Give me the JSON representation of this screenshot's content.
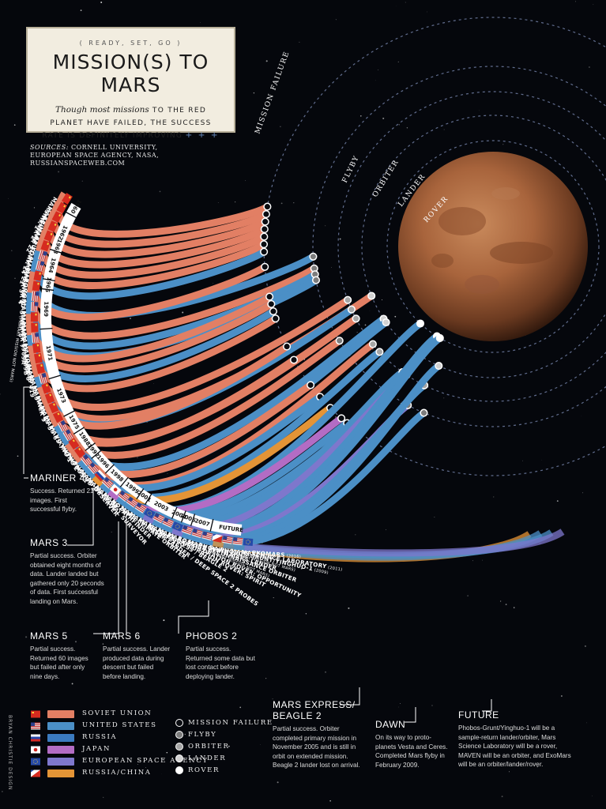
{
  "header": {
    "kicker": "READY, SET, GO",
    "title": "MISSION(S) TO MARS",
    "subtitle_italic": "Though most missions",
    "subtitle_rest": " TO THE RED PLANET HAVE FAILED, THE SUCCESS RATE IS DEFINITELY IMPROVING",
    "plus": "+ + +"
  },
  "sources": {
    "label": "SOURCES:",
    "text": " CORNELL UNIVERSITY, EUROPEAN SPACE AGENCY, NASA, RUSSIANSPACEWEB.COM"
  },
  "orbit_labels": [
    "MISSION FAILURE",
    "FLYBY",
    "ORBITER",
    "LANDER",
    "ROVER"
  ],
  "agency_colors": {
    "ussr": "#e27f64",
    "usa": "#4b8fc6",
    "russia": "#3b7bc0",
    "japan": "#b36cc4",
    "esa": "#7e77cc",
    "russia_china": "#e49436"
  },
  "outcome_colors": {
    "failure": "#0b0d12",
    "flyby": "#7d7d7d",
    "orbiter": "#a6a6a6",
    "lander": "#d2d2d2",
    "rover": "#ffffff"
  },
  "missions": [
    {
      "name": "MARSNIK 1",
      "agency": "ussr",
      "outcome": "failure",
      "flag": "ussr"
    },
    {
      "name": "MARSNIK 2",
      "agency": "ussr",
      "outcome": "failure",
      "flag": "ussr"
    },
    {
      "name": "SPUTNIK 22",
      "agency": "ussr",
      "outcome": "failure",
      "flag": "ussr"
    },
    {
      "name": "MARS 1",
      "agency": "ussr",
      "outcome": "failure",
      "flag": "ussr"
    },
    {
      "name": "SPUTNIK 24",
      "agency": "ussr",
      "outcome": "failure",
      "flag": "ussr"
    },
    {
      "name": "KOSMOS 21",
      "agency": "ussr",
      "outcome": "failure",
      "flag": "ussr"
    },
    {
      "name": "MARINER 3",
      "agency": "usa",
      "outcome": "failure",
      "flag": "usa"
    },
    {
      "name": "MARINER 4",
      "agency": "usa",
      "outcome": "flyby",
      "flag": "usa"
    },
    {
      "name": "ZOND 2",
      "agency": "ussr",
      "outcome": "failure",
      "flag": "ussr"
    },
    {
      "name": "ZOND 3",
      "agency": "ussr",
      "outcome": "flyby",
      "flag": "ussr",
      "note": " (PRIMARY MISSION NOT MARS)"
    },
    {
      "name": "MARINER 6",
      "agency": "usa",
      "outcome": "flyby",
      "flag": "usa"
    },
    {
      "name": "MARINER 7",
      "agency": "usa",
      "outcome": "flyby",
      "flag": "usa"
    },
    {
      "name": "MARS 1969A",
      "agency": "ussr",
      "outcome": "failure",
      "flag": "ussr"
    },
    {
      "name": "MARS 1969B",
      "agency": "ussr",
      "outcome": "failure",
      "flag": "ussr"
    },
    {
      "name": "MARINER 8",
      "agency": "usa",
      "outcome": "failure",
      "flag": "usa"
    },
    {
      "name": "KOSMOS 419",
      "agency": "ussr",
      "outcome": "failure",
      "flag": "ussr"
    },
    {
      "name": "MARS 2",
      "agency": "ussr",
      "outcome": "orbiter",
      "flag": "ussr"
    },
    {
      "name": "MARS 3",
      "agency": "ussr",
      "outcome": "lander",
      "flag": "ussr"
    },
    {
      "name": "MARINER 9",
      "agency": "usa",
      "outcome": "orbiter",
      "flag": "usa"
    },
    {
      "name": "MARS 4",
      "agency": "ussr",
      "outcome": "failure",
      "flag": "ussr"
    },
    {
      "name": "MARS 5",
      "agency": "ussr",
      "outcome": "orbiter",
      "flag": "ussr"
    },
    {
      "name": "MARS 6",
      "agency": "ussr",
      "outcome": "failure",
      "flag": "ussr"
    },
    {
      "name": "MARS 7",
      "agency": "ussr",
      "outcome": "flyby",
      "flag": "ussr"
    },
    {
      "name": "VIKING 1",
      "agency": "usa",
      "outcome": "lander",
      "flag": "usa"
    },
    {
      "name": "VIKING 2",
      "agency": "usa",
      "outcome": "lander",
      "flag": "usa"
    },
    {
      "name": "PHOBOS 1",
      "agency": "ussr",
      "outcome": "failure",
      "flag": "ussr"
    },
    {
      "name": "PHOBOS 2",
      "agency": "ussr",
      "outcome": "orbiter",
      "flag": "ussr"
    },
    {
      "name": "MARS OBSERVER",
      "agency": "usa",
      "outcome": "failure",
      "flag": "usa"
    },
    {
      "name": "MARS GLOBAL SURVEYOR",
      "agency": "usa",
      "outcome": "orbiter",
      "flag": "usa"
    },
    {
      "name": "MARS 96",
      "agency": "russia_china",
      "outcome": "failure",
      "flag": "russia"
    },
    {
      "name": "MARS PATHFINDER",
      "agency": "usa",
      "outcome": "rover",
      "flag": "usa"
    },
    {
      "name": "NOZOMI",
      "agency": "japan",
      "outcome": "failure",
      "flag": "japan"
    },
    {
      "name": "MARS CLIMATE ORBITER",
      "agency": "usa",
      "outcome": "failure",
      "flag": "usa"
    },
    {
      "name": "MARS POLAR LANDER / DEEP SPACE 2 PROBES",
      "agency": "usa",
      "outcome": "failure",
      "flag": "usa"
    },
    {
      "name": "MARS ODYSSEY",
      "agency": "usa",
      "outcome": "orbiter",
      "flag": "usa"
    },
    {
      "name": "MARS EXPRESS / BEAGLE 2",
      "agency": "esa",
      "outcome": "orbiter",
      "flag": "esa"
    },
    {
      "name": "MARS EXPLORATION ROVER: SPIRIT",
      "agency": "usa",
      "outcome": "rover",
      "flag": "usa"
    },
    {
      "name": "MARS EXPLORATION ROVER: OPPORTUNITY",
      "agency": "usa",
      "outcome": "rover",
      "flag": "usa"
    },
    {
      "name": "ROSETTA",
      "agency": "esa",
      "outcome": "flyby",
      "flag": "esa",
      "note": " (PRIMARY MISSION NOT MARS)"
    },
    {
      "name": "MARS RECONNAISSANCE ORBITER",
      "agency": "usa",
      "outcome": "orbiter",
      "flag": "usa"
    },
    {
      "name": "PHOENIX MARS LANDER",
      "agency": "usa",
      "outcome": "lander",
      "flag": "usa"
    },
    {
      "name": "DAWN",
      "agency": "usa",
      "outcome": "flyby",
      "flag": "usa",
      "note": " (PRIMARY MISSION NOT MARS)"
    },
    {
      "name": "PHOBOS-GRUNT/YINGHUO-1",
      "agency": "russia_china",
      "outcome": "future",
      "flag": "russia_china",
      "note": " (2009)"
    },
    {
      "name": "MARS SCIENCE LABORATORY",
      "agency": "usa",
      "outcome": "future",
      "flag": "usa",
      "note": " (2011)"
    },
    {
      "name": "MAVEN",
      "agency": "usa",
      "outcome": "future",
      "flag": "usa",
      "note": " (2013)"
    },
    {
      "name": "EXOMARS",
      "agency": "esa",
      "outcome": "future",
      "flag": "esa",
      "note": " (2016)"
    }
  ],
  "years": [
    {
      "label": "1960",
      "first": 0,
      "last": 1
    },
    {
      "label": "1962",
      "first": 2,
      "last": 5
    },
    {
      "label": "1963",
      "first": 5,
      "last": 5
    },
    {
      "label": "1964",
      "first": 6,
      "last": 8
    },
    {
      "label": "1965",
      "first": 9,
      "last": 9
    },
    {
      "label": "1969",
      "first": 10,
      "last": 13
    },
    {
      "label": "1971",
      "first": 14,
      "last": 18
    },
    {
      "label": "1973",
      "first": 19,
      "last": 22
    },
    {
      "label": "1975",
      "first": 23,
      "last": 24
    },
    {
      "label": "1988",
      "first": 25,
      "last": 26
    },
    {
      "label": "1992",
      "first": 27,
      "last": 27
    },
    {
      "label": "1996",
      "first": 28,
      "last": 29
    },
    {
      "label": "1998",
      "first": 30,
      "last": 31
    },
    {
      "label": "1999",
      "first": 32,
      "last": 33
    },
    {
      "label": "2001",
      "first": 34,
      "last": 34
    },
    {
      "label": "2003",
      "first": 35,
      "last": 37
    },
    {
      "label": "2004",
      "first": 38,
      "last": 38
    },
    {
      "label": "2005",
      "first": 39,
      "last": 39
    },
    {
      "label": "2007",
      "first": 40,
      "last": 41
    },
    {
      "label": "FUTURE",
      "first": 42,
      "last": 45
    }
  ],
  "callouts": {
    "mariner4": {
      "title": "MARINER 4",
      "text": "Success. Returned 21 images. First successful flyby."
    },
    "mars3": {
      "title": "MARS 3",
      "text": "Partial success. Orbiter obtained eight months of data. Lander landed but gathered only 20 seconds of data. First successful landing on Mars."
    },
    "mars5": {
      "title": "MARS 5",
      "text": "Partial success. Returned 60 images but failed after only nine days."
    },
    "mars6": {
      "title": "MARS 6",
      "text": "Partial success. Lander produced data during descent but failed before landing."
    },
    "phobos2": {
      "title": "PHOBOS 2",
      "text": "Partial success. Returned some data but lost contact before deploying lander."
    },
    "marsexpress": {
      "title": "MARS EXPRESS/ BEAGLE 2",
      "text": "Partial success. Orbiter completed primary mission in November 2005 and is still in orbit on extended mission. Beagle 2 lander lost on arrival."
    },
    "dawn": {
      "title": "DAWN",
      "text": "On its way to proto-planets Vesta and Ceres. Completed Mars flyby in February 2009."
    },
    "future": {
      "title": "FUTURE",
      "text": "Phobos-Grunt/Yinghuo-1 will be a sample-return lander/orbiter, Mars Science Laboratory will be a rover, MAVEN will be an orbiter, and ExoMars will be an orbiter/lander/rover."
    }
  },
  "legend_agencies": [
    {
      "label": "SOVIET UNION",
      "color": "#e27f64",
      "flag": "ussr"
    },
    {
      "label": "UNITED STATES",
      "color": "#4b8fc6",
      "flag": "usa"
    },
    {
      "label": "RUSSIA",
      "color": "#3b7bc0",
      "flag": "russia"
    },
    {
      "label": "JAPAN",
      "color": "#b36cc4",
      "flag": "japan"
    },
    {
      "label": "EUROPEAN SPACE AGENCY",
      "color": "#7e77cc",
      "flag": "esa"
    },
    {
      "label": "RUSSIA/CHINA",
      "color": "#e49436",
      "flag": "russia_china"
    }
  ],
  "legend_outcomes": [
    {
      "label": "MISSION FAILURE",
      "outcome": "failure"
    },
    {
      "label": "FLYBY",
      "outcome": "flyby"
    },
    {
      "label": "ORBITER",
      "outcome": "orbiter"
    },
    {
      "label": "LANDER",
      "outcome": "lander"
    },
    {
      "label": "ROVER",
      "outcome": "rover"
    }
  ],
  "credit": "BRYAN CHRISTIE DESIGN"
}
